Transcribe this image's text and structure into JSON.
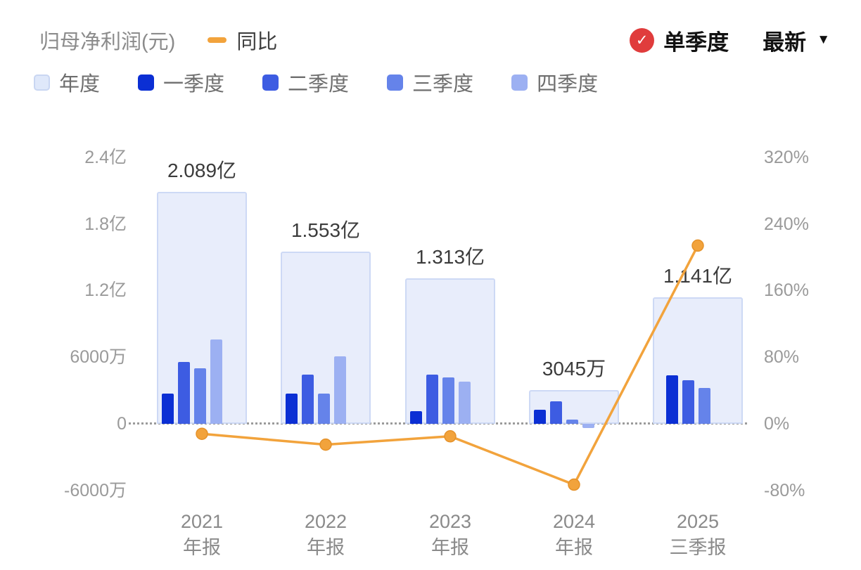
{
  "header": {
    "title": "归母净利润(元)",
    "yoy_label": "同比",
    "single_quarter_label": "单季度",
    "latest_label": "最新"
  },
  "icons": {
    "dropdown": "▼",
    "check": "✓"
  },
  "legend": {
    "items": [
      {
        "name": "annual",
        "label": "年度",
        "color": "#dfe8fa",
        "border": "#c9d6f2"
      },
      {
        "name": "q1",
        "label": "一季度",
        "color": "#0b2fd4"
      },
      {
        "name": "q2",
        "label": "二季度",
        "color": "#3d5ce2"
      },
      {
        "name": "q3",
        "label": "三季度",
        "color": "#6583ea"
      },
      {
        "name": "q4",
        "label": "四季度",
        "color": "#9cb0f2"
      }
    ]
  },
  "colors": {
    "annual_bar_fill": "#e8edfb",
    "annual_bar_border": "#cdd9f5",
    "quarter_colors": [
      "#0b2fd4",
      "#3d5ce2",
      "#6583ea",
      "#9cb0f2"
    ],
    "yoy_line": "#f2a33c",
    "yoy_marker_stroke": "#e5922a",
    "selected_badge": "#e03c3c",
    "axis_text": "#9a9a9a",
    "title_text": "#8b8b8b"
  },
  "chart_data": {
    "type": "bar",
    "title": "归母净利润(元)",
    "subtitle": "同比",
    "legend_position": "top",
    "grid": "zero-line-only",
    "categories": [
      {
        "line1": "2021",
        "line2": "年报"
      },
      {
        "line1": "2022",
        "line2": "年报"
      },
      {
        "line1": "2023",
        "line2": "年报"
      },
      {
        "line1": "2024",
        "line2": "年报"
      },
      {
        "line1": "2025",
        "line2": "三季报"
      }
    ],
    "annual_totals_wan": [
      20890,
      15530,
      13130,
      3045,
      11410
    ],
    "annual_labels": [
      "2.089亿",
      "1.553亿",
      "1.313亿",
      "3045万",
      "1.141亿"
    ],
    "quarterly_values_wan": [
      [
        2700,
        5600,
        5000,
        7600
      ],
      [
        2700,
        4400,
        2700,
        6100
      ],
      [
        1150,
        4400,
        4200,
        3800
      ],
      [
        1250,
        2000,
        350,
        -350
      ],
      [
        4350,
        3900,
        3250
      ]
    ],
    "yoy_series": {
      "name": "同比",
      "values_percent": [
        -12,
        -25,
        -15,
        -73,
        214
      ]
    },
    "left_axis": {
      "label": "归母净利润(元)",
      "ticks": [
        "2.4亿",
        "1.8亿",
        "1.2亿",
        "6000万",
        "0",
        "-6000万"
      ],
      "values_wan": [
        24000,
        18000,
        12000,
        6000,
        0,
        -6000
      ],
      "ylim_wan": [
        -6000,
        24000
      ]
    },
    "right_axis": {
      "label": "同比",
      "ticks": [
        "320%",
        "240%",
        "160%",
        "80%",
        "0%",
        "-80%"
      ],
      "values_percent": [
        320,
        240,
        160,
        80,
        0,
        -80
      ],
      "ylim_percent": [
        -80,
        320
      ]
    }
  }
}
